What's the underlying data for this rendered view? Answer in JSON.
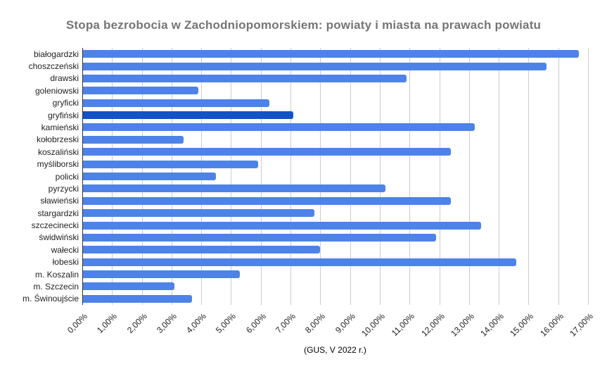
{
  "title": "Stopa bezrobocia w Zachodniopomorskiem: powiaty i miasta na prawach powiatu",
  "colors": {
    "bar": "#4d83e8",
    "bar_highlight": "#1452c8",
    "gridline": "#cccccc",
    "baseline": "#333333",
    "title_text": "#757575",
    "axis_text": "#222222",
    "background": "#ffffff"
  },
  "chart_data": {
    "type": "bar",
    "orientation": "horizontal",
    "title": "Stopa bezrobocia w Zachodniopomorskiem: powiaty i miasta na prawach powiatu",
    "xlabel": "(GUS, V 2022 r.)",
    "ylabel": "",
    "xlim": [
      0,
      17
    ],
    "x_tick_step": 1,
    "grid": true,
    "legend": "none",
    "unit": "%",
    "categories": [
      "białogardzki",
      "choszczeński",
      "drawski",
      "goleniowski",
      "gryficki",
      "gryfiński",
      "kamieński",
      "kołobrzeski",
      "koszaliński",
      "myśliborski",
      "policki",
      "pyrzycki",
      "sławieński",
      "stargardzki",
      "szczecinecki",
      "świdwiński",
      "wałecki",
      "łobeski",
      "m. Koszalin",
      "m. Szczecin",
      "m. Świnoujście"
    ],
    "values": [
      16.7,
      15.6,
      10.9,
      3.9,
      6.3,
      7.1,
      13.2,
      3.4,
      12.4,
      5.9,
      4.5,
      10.2,
      12.4,
      7.8,
      13.4,
      11.9,
      8.0,
      14.6,
      5.3,
      3.1,
      3.7
    ],
    "highlight_index": 5,
    "highlighted_category": "gryfiński",
    "x_tick_labels": [
      "0,00%",
      "1,00%",
      "2,00%",
      "3,00%",
      "4,00%",
      "5,00%",
      "6,00%",
      "7,00%",
      "8,00%",
      "9,00%",
      "10,00%",
      "11,00%",
      "12,00%",
      "13,00%",
      "14,00%",
      "15,00%",
      "16,00%",
      "17,00%"
    ]
  }
}
